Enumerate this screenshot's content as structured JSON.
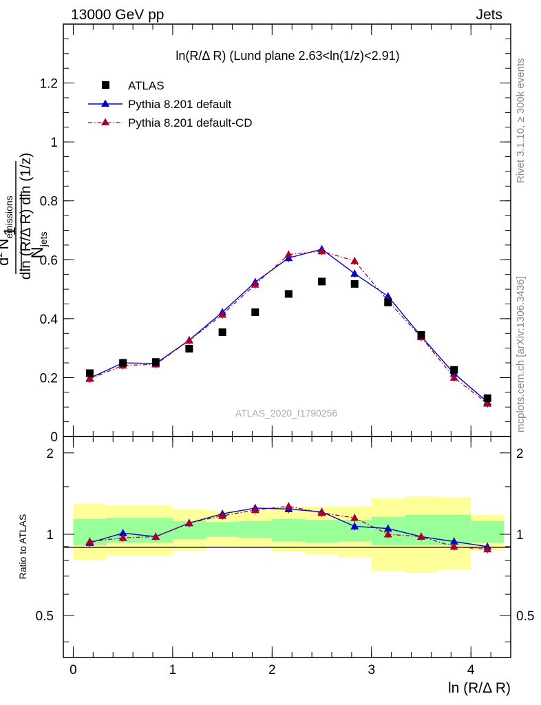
{
  "header": {
    "energy_label": "13000 GeV pp",
    "process_label": "Jets",
    "side_rivet": "Rivet 3.1.10, ≥ 300k events",
    "side_mcplots": "mcplots.cern.ch [arXiv:1306.3436]",
    "analysis_id": "ATLAS_2020_I1790256"
  },
  "chart_data": [
    {
      "type": "scatter",
      "title": "ln(R/Δ R) (Lund plane 2.63<ln(1/z)<2.91)",
      "ylabel": "1/N_jets d²N_emissions / dln(R/ΔR) dln(1/z)",
      "ylabel_parts": {
        "frac_num": "1",
        "frac_den_n": "N",
        "frac_den_sub": "jets",
        "d2n": "d",
        "sup2": "2",
        "n_emiss": "N",
        "emiss_sub": "emissions",
        "den_line": "dln (R/Δ R) dln (1/z)"
      },
      "xlim": [
        -0.1,
        4.4
      ],
      "ylim": [
        0,
        1.4
      ],
      "yticks": [
        {
          "v": 0,
          "label": "0"
        },
        {
          "v": 0.2,
          "label": "0.2"
        },
        {
          "v": 0.4,
          "label": "0.4"
        },
        {
          "v": 0.6,
          "label": "0.6"
        },
        {
          "v": 0.8,
          "label": "0.8"
        },
        {
          "v": 1.0,
          "label": "1"
        },
        {
          "v": 1.2,
          "label": "1.2"
        }
      ],
      "legend_position": "top-left",
      "series": [
        {
          "name": "ATLAS",
          "style": "data",
          "color": "#000000",
          "x": [
            0.166,
            0.5,
            0.83,
            1.166,
            1.5,
            1.83,
            2.166,
            2.5,
            2.83,
            3.166,
            3.5,
            3.83,
            4.166
          ],
          "y": [
            0.215,
            0.25,
            0.253,
            0.298,
            0.354,
            0.422,
            0.484,
            0.526,
            0.518,
            0.455,
            0.345,
            0.226,
            0.13
          ]
        },
        {
          "name": "Pythia 8.201 default",
          "style": "solid",
          "color": "#0000cc",
          "x": [
            0.166,
            0.5,
            0.83,
            1.166,
            1.5,
            1.83,
            2.166,
            2.5,
            2.83,
            3.166,
            3.5,
            3.83,
            4.166
          ],
          "y": [
            0.198,
            0.25,
            0.248,
            0.327,
            0.422,
            0.524,
            0.606,
            0.636,
            0.553,
            0.476,
            0.34,
            0.214,
            0.117
          ]
        },
        {
          "name": "Pythia 8.201 default-CD",
          "style": "dashdot",
          "color": "#a8002c",
          "x": [
            0.166,
            0.5,
            0.83,
            1.166,
            1.5,
            1.83,
            2.166,
            2.5,
            2.83,
            3.166,
            3.5,
            3.83,
            4.166
          ],
          "y": [
            0.196,
            0.241,
            0.245,
            0.326,
            0.414,
            0.516,
            0.618,
            0.629,
            0.596,
            0.46,
            0.337,
            0.2,
            0.112
          ]
        }
      ]
    },
    {
      "type": "line",
      "ylabel": "Ratio to ATLAS",
      "xlabel": "ln (R/Δ R)",
      "xlim": [
        -0.1,
        4.4
      ],
      "ylim": [
        0.35,
        2.3
      ],
      "xticks": [
        {
          "v": 0,
          "label": "0"
        },
        {
          "v": 1,
          "label": "1"
        },
        {
          "v": 2,
          "label": "2"
        },
        {
          "v": 3,
          "label": "3"
        },
        {
          "v": 4,
          "label": "4"
        }
      ],
      "yticks": [
        {
          "v": 0.5,
          "label": "0.5"
        },
        {
          "v": 1,
          "label": "1"
        },
        {
          "v": 2,
          "label": "2"
        }
      ],
      "bin_edges": [
        0,
        0.333,
        0.666,
        1.0,
        1.333,
        1.666,
        2.0,
        2.333,
        2.666,
        3.0,
        3.333,
        3.666,
        4.0,
        4.333
      ],
      "band_inner": [
        [
          0.91,
          1.14
        ],
        [
          0.93,
          1.15
        ],
        [
          0.93,
          1.15
        ],
        [
          0.96,
          1.12
        ],
        [
          0.98,
          1.11
        ],
        [
          0.97,
          1.12
        ],
        [
          0.94,
          1.14
        ],
        [
          0.93,
          1.13
        ],
        [
          0.94,
          1.13
        ],
        [
          0.91,
          1.16
        ],
        [
          0.91,
          1.18
        ],
        [
          0.91,
          1.18
        ],
        [
          0.93,
          1.12
        ]
      ],
      "band_outer": [
        [
          0.8,
          1.3
        ],
        [
          0.83,
          1.28
        ],
        [
          0.83,
          1.28
        ],
        [
          0.87,
          1.24
        ],
        [
          0.9,
          1.22
        ],
        [
          0.89,
          1.23
        ],
        [
          0.86,
          1.26
        ],
        [
          0.84,
          1.27
        ],
        [
          0.82,
          1.27
        ],
        [
          0.73,
          1.36
        ],
        [
          0.72,
          1.38
        ],
        [
          0.74,
          1.37
        ],
        [
          0.87,
          1.18
        ]
      ],
      "series": [
        {
          "name": "Pythia 8.201 default",
          "style": "solid",
          "color": "#0000cc",
          "x": [
            0.166,
            0.5,
            0.83,
            1.166,
            1.5,
            1.83,
            2.166,
            2.5,
            2.83,
            3.166,
            3.5,
            3.83,
            4.166
          ],
          "y": [
            0.93,
            1.01,
            0.98,
            1.1,
            1.19,
            1.25,
            1.24,
            1.21,
            1.07,
            1.05,
            0.98,
            0.94,
            0.9
          ]
        },
        {
          "name": "Pythia 8.201 default-CD",
          "style": "dashdot",
          "color": "#a8002c",
          "x": [
            0.166,
            0.5,
            0.83,
            1.166,
            1.5,
            1.83,
            2.166,
            2.5,
            2.83,
            3.166,
            3.5,
            3.83,
            4.166
          ],
          "y": [
            0.94,
            0.97,
            0.98,
            1.1,
            1.17,
            1.23,
            1.27,
            1.2,
            1.15,
            1.0,
            0.98,
            0.9,
            0.88
          ]
        }
      ]
    }
  ]
}
